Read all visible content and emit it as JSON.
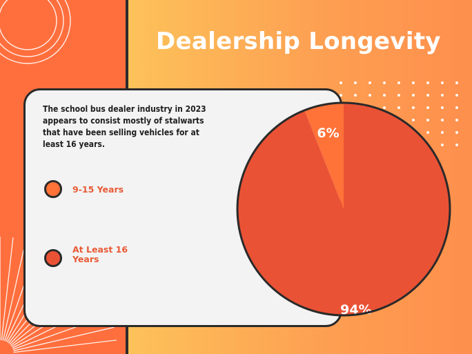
{
  "header": {
    "title": "Dealership Longevity"
  },
  "description": "The school bus dealer industry in 2023 appears to consist mostly of stalwarts that have been selling vehicles for at least 16 years.",
  "legend": [
    {
      "label": "9-15 Years",
      "color": "#ff7238"
    },
    {
      "label": "At Least 16 Years",
      "color": "#ea5235"
    }
  ],
  "chart_data": {
    "type": "pie",
    "categories": [
      "9-15 Years",
      "At Least 16 Years"
    ],
    "values": [
      6,
      94
    ],
    "labels": [
      "6%",
      "94%"
    ],
    "colors": [
      "#ff7238",
      "#ea5235"
    ],
    "title": "Dealership Longevity"
  }
}
